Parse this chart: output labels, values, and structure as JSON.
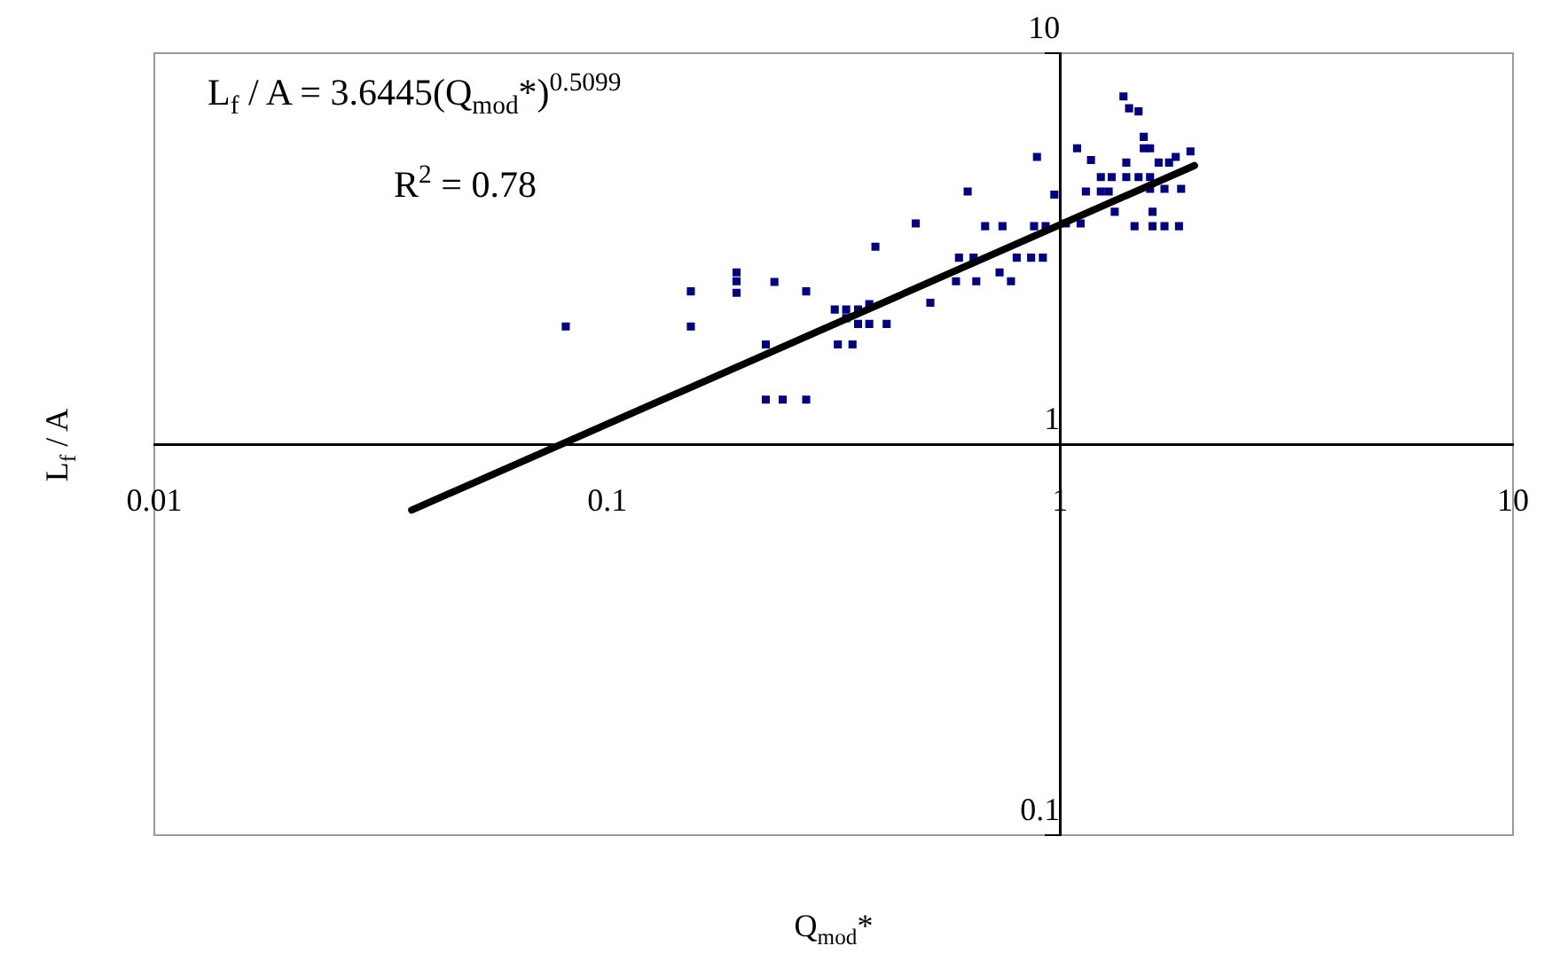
{
  "chart_data": {
    "type": "scatter",
    "xlabel": "Q$_{mod}$*",
    "ylabel": "L$_{f}$ / A",
    "annotations": [
      "L$_{f}$ / A = 3.6445(Q$_{mod}$*)$^{0.5099}$",
      "R$^{2}$ = 0.78"
    ],
    "log": "xy",
    "xlim": [
      0.01,
      10
    ],
    "ylim": [
      0.1,
      10
    ],
    "xticks": [
      0.01,
      0.1,
      1,
      10
    ],
    "yticks": [
      0.1,
      1,
      10
    ],
    "grid": false,
    "legend": false,
    "series": [
      {
        "type": "scatter",
        "marker": "square",
        "color": "#000080",
        "x": [
          0.081,
          0.153,
          0.153,
          0.193,
          0.193,
          0.193,
          0.234,
          0.275,
          0.224,
          0.244,
          0.275,
          0.224,
          0.391,
          0.318,
          0.337,
          0.358,
          0.337,
          0.358,
          0.379,
          0.414,
          0.323,
          0.348,
          0.379,
          0.48,
          0.517,
          0.625,
          0.683,
          0.746,
          0.598,
          0.644,
          0.589,
          0.653,
          0.735,
          0.779,
          0.802,
          0.863,
          0.916,
          0.889,
          0.876,
          0.929,
          0.971,
          1.03,
          1.11,
          1.09,
          1.17,
          1.14,
          1.23,
          1.28,
          1.23,
          1.3,
          1.4,
          1.32,
          1.4,
          1.38,
          1.42,
          1.49,
          1.53,
          1.53,
          1.58,
          1.49,
          1.58,
          1.65,
          1.74,
          1.8,
          1.94,
          1.58,
          1.7,
          1.85,
          1.6,
          1.46,
          1.6,
          1.7,
          1.83
        ],
        "values": [
          2.0,
          2.46,
          2.0,
          2.75,
          2.61,
          2.44,
          2.6,
          2.46,
          1.3,
          1.3,
          1.3,
          1.8,
          3.2,
          2.21,
          2.21,
          2.21,
          2.1,
          2.03,
          2.03,
          2.03,
          1.8,
          1.8,
          2.28,
          3.67,
          2.3,
          4.43,
          3.61,
          3.61,
          3.0,
          3.0,
          2.61,
          2.61,
          2.75,
          2.61,
          3.0,
          3.0,
          3.0,
          5.43,
          3.61,
          3.61,
          4.35,
          3.67,
          3.67,
          5.71,
          5.33,
          4.43,
          4.43,
          4.43,
          4.82,
          4.82,
          4.82,
          3.93,
          5.25,
          7.75,
          7.23,
          7.1,
          6.11,
          5.71,
          5.71,
          4.82,
          4.82,
          5.25,
          5.25,
          5.43,
          5.61,
          4.5,
          4.5,
          4.5,
          3.93,
          3.61,
          3.61,
          3.61,
          3.61
        ]
      },
      {
        "type": "line",
        "marker": "none",
        "color": "#000000",
        "x": [
          0.037,
          1.98
        ],
        "values": [
          0.678,
          5.16
        ]
      }
    ]
  }
}
